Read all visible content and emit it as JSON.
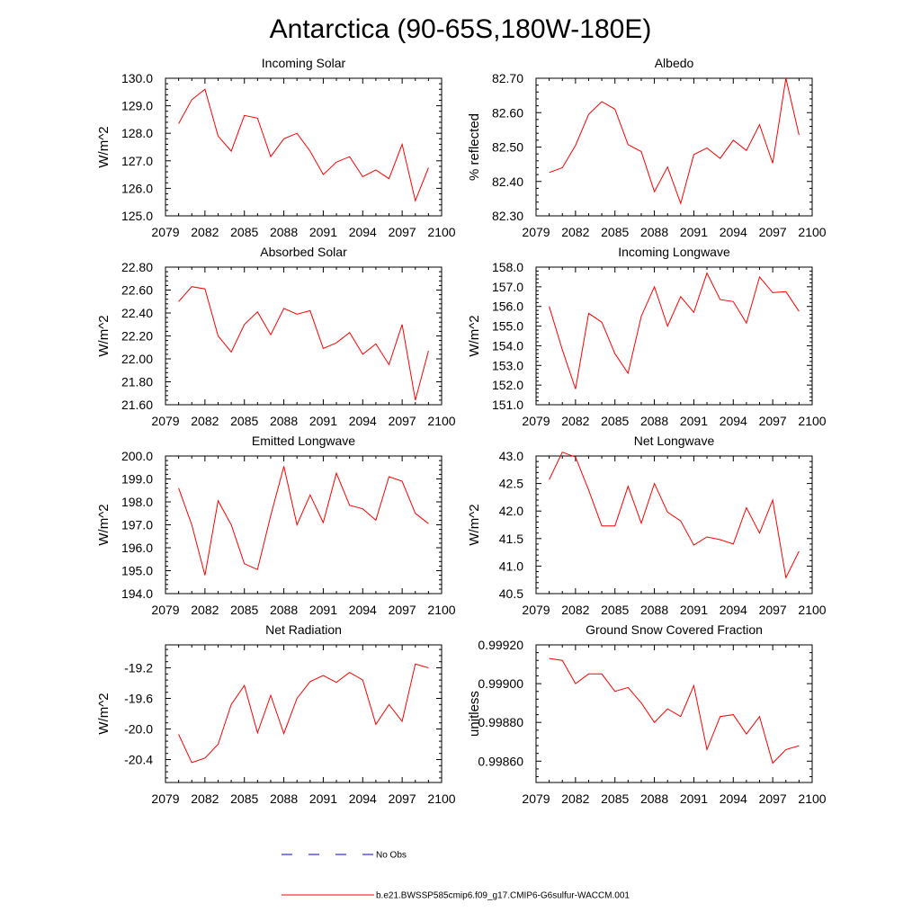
{
  "title": "Antarctica (90-65S,180W-180E)",
  "colors": {
    "model": "#ff0000",
    "obs": "#0000cc",
    "frame": "#000000"
  },
  "legend": [
    {
      "label": "No Obs",
      "color": "#0000cc",
      "style": "dashed"
    },
    {
      "label": "b.e21.BWSSP585cmip6.f09_g17.CMIP6-G6sulfur-WACCM.001",
      "color": "#ff0000",
      "style": "solid"
    }
  ],
  "chart_data": [
    {
      "type": "line",
      "title": "Incoming Solar",
      "ylabel": "W/m^2",
      "xlim": [
        2079,
        2100
      ],
      "xticks": [
        2079,
        2082,
        2085,
        2088,
        2091,
        2094,
        2097,
        2100
      ],
      "ylim": [
        125.0,
        130.0
      ],
      "yticks": [
        125.0,
        126.0,
        127.0,
        128.0,
        129.0,
        130.0
      ],
      "ytick_labels": [
        "125.0",
        "126.0",
        "127.0",
        "128.0",
        "129.0",
        "130.0"
      ],
      "x": [
        2080,
        2081,
        2082,
        2083,
        2084,
        2085,
        2086,
        2087,
        2088,
        2089,
        2090,
        2091,
        2092,
        2093,
        2094,
        2095,
        2096,
        2097,
        2098,
        2099
      ],
      "series": [
        {
          "values": [
            128.35,
            129.22,
            129.6,
            127.9,
            127.35,
            128.65,
            128.55,
            127.15,
            127.8,
            128.0,
            127.35,
            126.5,
            126.95,
            127.15,
            126.42,
            126.67,
            126.35,
            127.6,
            125.55,
            126.75
          ]
        }
      ]
    },
    {
      "type": "line",
      "title": "Albedo",
      "ylabel": "% reflected",
      "xlim": [
        2079,
        2100
      ],
      "xticks": [
        2079,
        2082,
        2085,
        2088,
        2091,
        2094,
        2097,
        2100
      ],
      "ylim": [
        82.3,
        82.7
      ],
      "yticks": [
        82.3,
        82.4,
        82.5,
        82.6,
        82.7
      ],
      "ytick_labels": [
        "82.30",
        "82.40",
        "82.50",
        "82.60",
        "82.70"
      ],
      "x": [
        2080,
        2081,
        2082,
        2083,
        2084,
        2085,
        2086,
        2087,
        2088,
        2089,
        2090,
        2091,
        2092,
        2093,
        2094,
        2095,
        2096,
        2097,
        2098,
        2099
      ],
      "series": [
        {
          "values": [
            82.426,
            82.44,
            82.505,
            82.595,
            82.632,
            82.61,
            82.507,
            82.487,
            82.37,
            82.442,
            82.336,
            82.478,
            82.497,
            82.467,
            82.52,
            82.49,
            82.565,
            82.453,
            82.7,
            82.535
          ]
        }
      ]
    },
    {
      "type": "line",
      "title": "Absorbed Solar",
      "ylabel": "W/m^2",
      "xlim": [
        2079,
        2100
      ],
      "xticks": [
        2079,
        2082,
        2085,
        2088,
        2091,
        2094,
        2097,
        2100
      ],
      "ylim": [
        21.6,
        22.8
      ],
      "yticks": [
        21.6,
        21.8,
        22.0,
        22.2,
        22.4,
        22.6,
        22.8
      ],
      "ytick_labels": [
        "21.60",
        "21.80",
        "22.00",
        "22.20",
        "22.40",
        "22.60",
        "22.80"
      ],
      "x": [
        2080,
        2081,
        2082,
        2083,
        2084,
        2085,
        2086,
        2087,
        2088,
        2089,
        2090,
        2091,
        2092,
        2093,
        2094,
        2095,
        2096,
        2097,
        2098,
        2099
      ],
      "series": [
        {
          "values": [
            22.5,
            22.63,
            22.61,
            22.2,
            22.06,
            22.3,
            22.41,
            22.21,
            22.44,
            22.39,
            22.42,
            22.09,
            22.14,
            22.23,
            22.04,
            22.13,
            21.95,
            22.3,
            21.64,
            22.07
          ]
        }
      ]
    },
    {
      "type": "line",
      "title": "Incoming Longwave",
      "ylabel": "W/m^2",
      "xlim": [
        2079,
        2100
      ],
      "xticks": [
        2079,
        2082,
        2085,
        2088,
        2091,
        2094,
        2097,
        2100
      ],
      "ylim": [
        151.0,
        158.0
      ],
      "yticks": [
        151.0,
        152.0,
        153.0,
        154.0,
        155.0,
        156.0,
        157.0,
        158.0
      ],
      "ytick_labels": [
        "151.0",
        "152.0",
        "153.0",
        "154.0",
        "155.0",
        "156.0",
        "157.0",
        "158.0"
      ],
      "x": [
        2080,
        2081,
        2082,
        2083,
        2084,
        2085,
        2086,
        2087,
        2088,
        2089,
        2090,
        2091,
        2092,
        2093,
        2094,
        2095,
        2096,
        2097,
        2098,
        2099
      ],
      "series": [
        {
          "values": [
            156.0,
            153.8,
            151.8,
            155.65,
            155.2,
            153.6,
            152.6,
            155.5,
            157.0,
            155.0,
            156.5,
            155.7,
            157.7,
            156.35,
            156.25,
            155.15,
            157.5,
            156.7,
            156.75,
            155.75
          ]
        }
      ]
    },
    {
      "type": "line",
      "title": "Emitted Longwave",
      "ylabel": "W/m^2",
      "xlim": [
        2079,
        2100
      ],
      "xticks": [
        2079,
        2082,
        2085,
        2088,
        2091,
        2094,
        2097,
        2100
      ],
      "ylim": [
        194.0,
        200.0
      ],
      "yticks": [
        194.0,
        195.0,
        196.0,
        197.0,
        198.0,
        199.0,
        200.0
      ],
      "ytick_labels": [
        "194.0",
        "195.0",
        "196.0",
        "197.0",
        "198.0",
        "199.0",
        "200.0"
      ],
      "x": [
        2080,
        2081,
        2082,
        2083,
        2084,
        2085,
        2086,
        2087,
        2088,
        2089,
        2090,
        2091,
        2092,
        2093,
        2094,
        2095,
        2096,
        2097,
        2098,
        2099
      ],
      "series": [
        {
          "values": [
            198.6,
            197.0,
            194.8,
            198.05,
            197.0,
            195.3,
            195.05,
            197.4,
            199.55,
            197.0,
            198.3,
            197.1,
            199.25,
            197.85,
            197.7,
            197.2,
            199.1,
            198.9,
            197.5,
            197.05
          ]
        }
      ]
    },
    {
      "type": "line",
      "title": "Net Longwave",
      "ylabel": "W/m^2",
      "xlim": [
        2079,
        2100
      ],
      "xticks": [
        2079,
        2082,
        2085,
        2088,
        2091,
        2094,
        2097,
        2100
      ],
      "ylim": [
        40.5,
        43.0
      ],
      "yticks": [
        40.5,
        41.0,
        41.5,
        42.0,
        42.5,
        43.0
      ],
      "ytick_labels": [
        "40.5",
        "41.0",
        "41.5",
        "42.0",
        "42.5",
        "43.0"
      ],
      "x": [
        2080,
        2081,
        2082,
        2083,
        2084,
        2085,
        2086,
        2087,
        2088,
        2089,
        2090,
        2091,
        2092,
        2093,
        2094,
        2095,
        2096,
        2097,
        2098,
        2099
      ],
      "series": [
        {
          "values": [
            42.57,
            43.07,
            42.98,
            42.38,
            41.73,
            41.73,
            42.45,
            41.78,
            42.5,
            41.98,
            41.82,
            41.38,
            41.53,
            41.48,
            41.4,
            42.06,
            41.6,
            42.2,
            40.79,
            41.27
          ]
        }
      ]
    },
    {
      "type": "line",
      "title": "Net Radiation",
      "ylabel": "W/m^2",
      "xlim": [
        2079,
        2100
      ],
      "xticks": [
        2079,
        2082,
        2085,
        2088,
        2091,
        2094,
        2097,
        2100
      ],
      "ylim": [
        -20.7,
        -18.9
      ],
      "yticks": [
        -20.4,
        -20.0,
        -19.6,
        -19.2
      ],
      "ytick_labels": [
        "-20.4",
        "-20.0",
        "-19.6",
        "-19.2"
      ],
      "x": [
        2080,
        2081,
        2082,
        2083,
        2084,
        2085,
        2086,
        2087,
        2088,
        2089,
        2090,
        2091,
        2092,
        2093,
        2094,
        2095,
        2096,
        2097,
        2098,
        2099
      ],
      "series": [
        {
          "values": [
            -20.07,
            -20.44,
            -20.38,
            -20.2,
            -19.68,
            -19.43,
            -20.05,
            -19.56,
            -20.06,
            -19.6,
            -19.38,
            -19.3,
            -19.39,
            -19.26,
            -19.36,
            -19.94,
            -19.68,
            -19.9,
            -19.15,
            -19.2
          ]
        }
      ]
    },
    {
      "type": "line",
      "title": "Ground Snow Covered Fraction",
      "ylabel": "unitless",
      "xlim": [
        2079,
        2100
      ],
      "xticks": [
        2079,
        2082,
        2085,
        2088,
        2091,
        2094,
        2097,
        2100
      ],
      "ylim": [
        0.99849,
        0.9992
      ],
      "yticks": [
        0.9986,
        0.9988,
        0.999,
        0.9992
      ],
      "ytick_labels": [
        "0.99860",
        "0.99880",
        "0.99900",
        "0.99920"
      ],
      "x": [
        2080,
        2081,
        2082,
        2083,
        2084,
        2085,
        2086,
        2087,
        2088,
        2089,
        2090,
        2091,
        2092,
        2093,
        2094,
        2095,
        2096,
        2097,
        2098,
        2099
      ],
      "series": [
        {
          "values": [
            0.99913,
            0.99912,
            0.999,
            0.99905,
            0.99905,
            0.99896,
            0.99898,
            0.9989,
            0.9988,
            0.99887,
            0.99883,
            0.99899,
            0.99866,
            0.99883,
            0.99884,
            0.99874,
            0.99883,
            0.99859,
            0.99866,
            0.99868
          ]
        }
      ]
    }
  ]
}
